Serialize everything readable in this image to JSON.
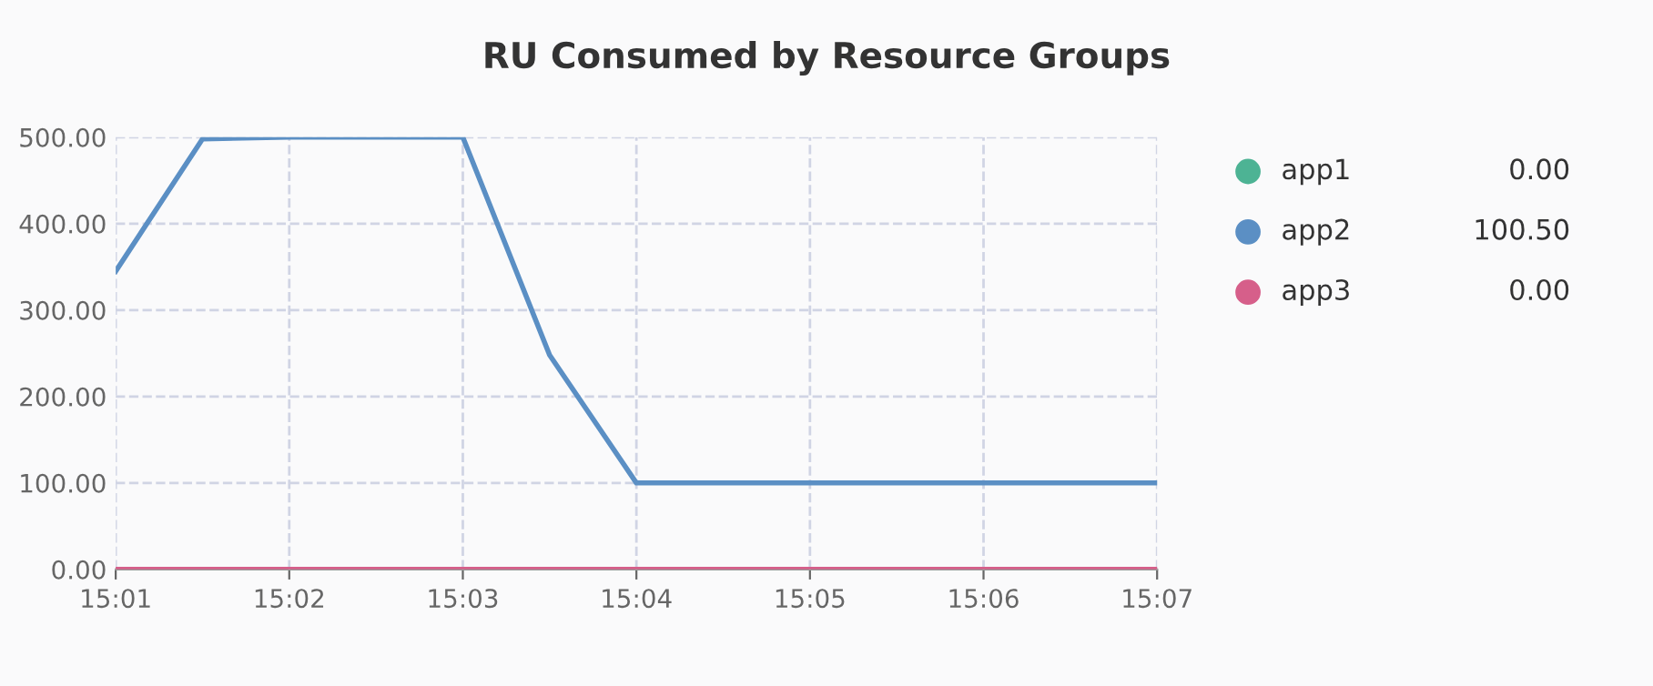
{
  "chart_data": {
    "type": "line",
    "title": "RU Consumed by Resource Groups",
    "x": [
      15.016667,
      15.025,
      15.033333,
      15.041667,
      15.05,
      15.058333,
      15.066667,
      15.075,
      15.083333,
      15.091667,
      15.1,
      15.108333,
      15.116667
    ],
    "series": [
      {
        "name": "app1",
        "color": "#4db394",
        "values": [
          null,
          null,
          null,
          null,
          null,
          null,
          null,
          null,
          null,
          null,
          null,
          null,
          null
        ]
      },
      {
        "name": "app2",
        "color": "#5b8fc4",
        "values": [
          345,
          498,
          500,
          500,
          500,
          248,
          100,
          100,
          100,
          100,
          100,
          100,
          100
        ]
      },
      {
        "name": "app3",
        "color": "#d65f8a",
        "values": [
          0,
          0,
          0,
          0,
          0,
          0,
          0,
          0,
          0,
          0,
          0,
          0,
          0
        ]
      }
    ],
    "annotations": [
      "0.00",
      "100.50",
      "0.00"
    ],
    "xlim": [
      15.016667,
      15.116667
    ],
    "xticks": [
      {
        "value": 15.016667,
        "label": "15:01"
      },
      {
        "value": 15.033333,
        "label": "15:02"
      },
      {
        "value": 15.05,
        "label": "15:03"
      },
      {
        "value": 15.066667,
        "label": "15:04"
      },
      {
        "value": 15.083333,
        "label": "15:05"
      },
      {
        "value": 15.1,
        "label": "15:06"
      },
      {
        "value": 15.116667,
        "label": "15:07"
      }
    ],
    "ylim": [
      0,
      500
    ],
    "yticks": [
      {
        "value": 0,
        "label": "0.00"
      },
      {
        "value": 100,
        "label": "100.00"
      },
      {
        "value": 200,
        "label": "200.00"
      },
      {
        "value": 300,
        "label": "300.00"
      },
      {
        "value": 400,
        "label": "400.00"
      },
      {
        "value": 500,
        "label": "500.00"
      }
    ],
    "grid": true,
    "legend": "right",
    "marker": "none",
    "line_style": "solid"
  }
}
